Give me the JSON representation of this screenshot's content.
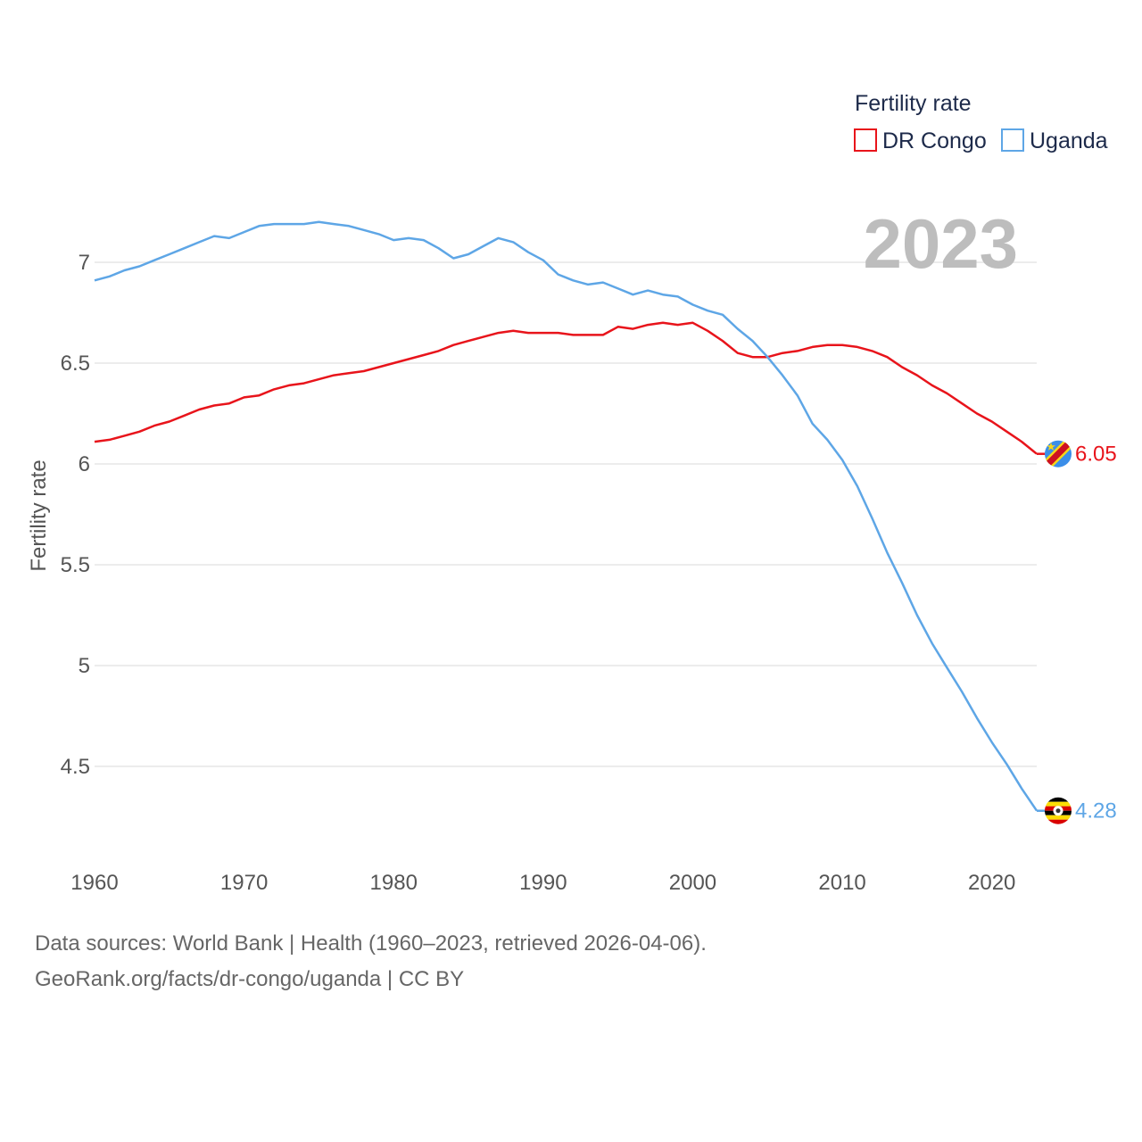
{
  "chart_data": {
    "type": "line",
    "title": "",
    "ylabel": "Fertility rate",
    "xlabel": "",
    "current_year": "2023",
    "ylim": [
      4.2,
      7.25
    ],
    "xlim": [
      1960,
      2023
    ],
    "y_ticks": [
      4.5,
      5,
      5.5,
      6,
      6.5,
      7
    ],
    "y_tick_labels": [
      "4.5",
      "5",
      "5.5",
      "6",
      "6.5",
      "7"
    ],
    "x_ticks": [
      1960,
      1970,
      1980,
      1990,
      2000,
      2010,
      2020
    ],
    "x_tick_labels": [
      "1960",
      "1970",
      "1980",
      "1990",
      "2000",
      "2010",
      "2020"
    ],
    "grid": true,
    "legend": {
      "title": "Fertility rate",
      "placement": "top-right"
    },
    "x": [
      1960,
      1961,
      1962,
      1963,
      1964,
      1965,
      1966,
      1967,
      1968,
      1969,
      1970,
      1971,
      1972,
      1973,
      1974,
      1975,
      1976,
      1977,
      1978,
      1979,
      1980,
      1981,
      1982,
      1983,
      1984,
      1985,
      1986,
      1987,
      1988,
      1989,
      1990,
      1991,
      1992,
      1993,
      1994,
      1995,
      1996,
      1997,
      1998,
      1999,
      2000,
      2001,
      2002,
      2003,
      2004,
      2005,
      2006,
      2007,
      2008,
      2009,
      2010,
      2011,
      2012,
      2013,
      2014,
      2015,
      2016,
      2017,
      2018,
      2019,
      2020,
      2021,
      2022,
      2023
    ],
    "series": [
      {
        "name": "DR Congo",
        "color": "#e8141b",
        "end_label": "6.05",
        "flag_icon": "dr-congo-flag-icon",
        "values": [
          6.11,
          6.12,
          6.14,
          6.16,
          6.19,
          6.21,
          6.24,
          6.27,
          6.29,
          6.3,
          6.33,
          6.34,
          6.37,
          6.39,
          6.4,
          6.42,
          6.44,
          6.45,
          6.46,
          6.48,
          6.5,
          6.52,
          6.54,
          6.56,
          6.59,
          6.61,
          6.63,
          6.65,
          6.66,
          6.65,
          6.65,
          6.65,
          6.64,
          6.64,
          6.64,
          6.68,
          6.67,
          6.69,
          6.7,
          6.69,
          6.7,
          6.66,
          6.61,
          6.55,
          6.53,
          6.53,
          6.55,
          6.56,
          6.58,
          6.59,
          6.59,
          6.58,
          6.56,
          6.53,
          6.48,
          6.44,
          6.39,
          6.35,
          6.3,
          6.25,
          6.21,
          6.16,
          6.11,
          6.05
        ]
      },
      {
        "name": "Uganda",
        "color": "#5ea6e6",
        "end_label": "4.28",
        "flag_icon": "uganda-flag-icon",
        "values": [
          6.91,
          6.93,
          6.96,
          6.98,
          7.01,
          7.04,
          7.07,
          7.1,
          7.13,
          7.12,
          7.15,
          7.18,
          7.19,
          7.19,
          7.19,
          7.2,
          7.19,
          7.18,
          7.16,
          7.14,
          7.11,
          7.12,
          7.11,
          7.07,
          7.02,
          7.04,
          7.08,
          7.12,
          7.1,
          7.05,
          7.01,
          6.94,
          6.91,
          6.89,
          6.9,
          6.87,
          6.84,
          6.86,
          6.84,
          6.83,
          6.79,
          6.76,
          6.74,
          6.67,
          6.61,
          6.53,
          6.44,
          6.34,
          6.2,
          6.12,
          6.02,
          5.89,
          5.73,
          5.56,
          5.41,
          5.25,
          5.11,
          4.99,
          4.87,
          4.74,
          4.62,
          4.51,
          4.39,
          4.28
        ]
      }
    ]
  },
  "footer": {
    "sources": "Data sources: World Bank | Health (1960–2023, retrieved 2026-04-06).",
    "url": "GeoRank.org/facts/dr-congo/uganda | CC BY"
  }
}
